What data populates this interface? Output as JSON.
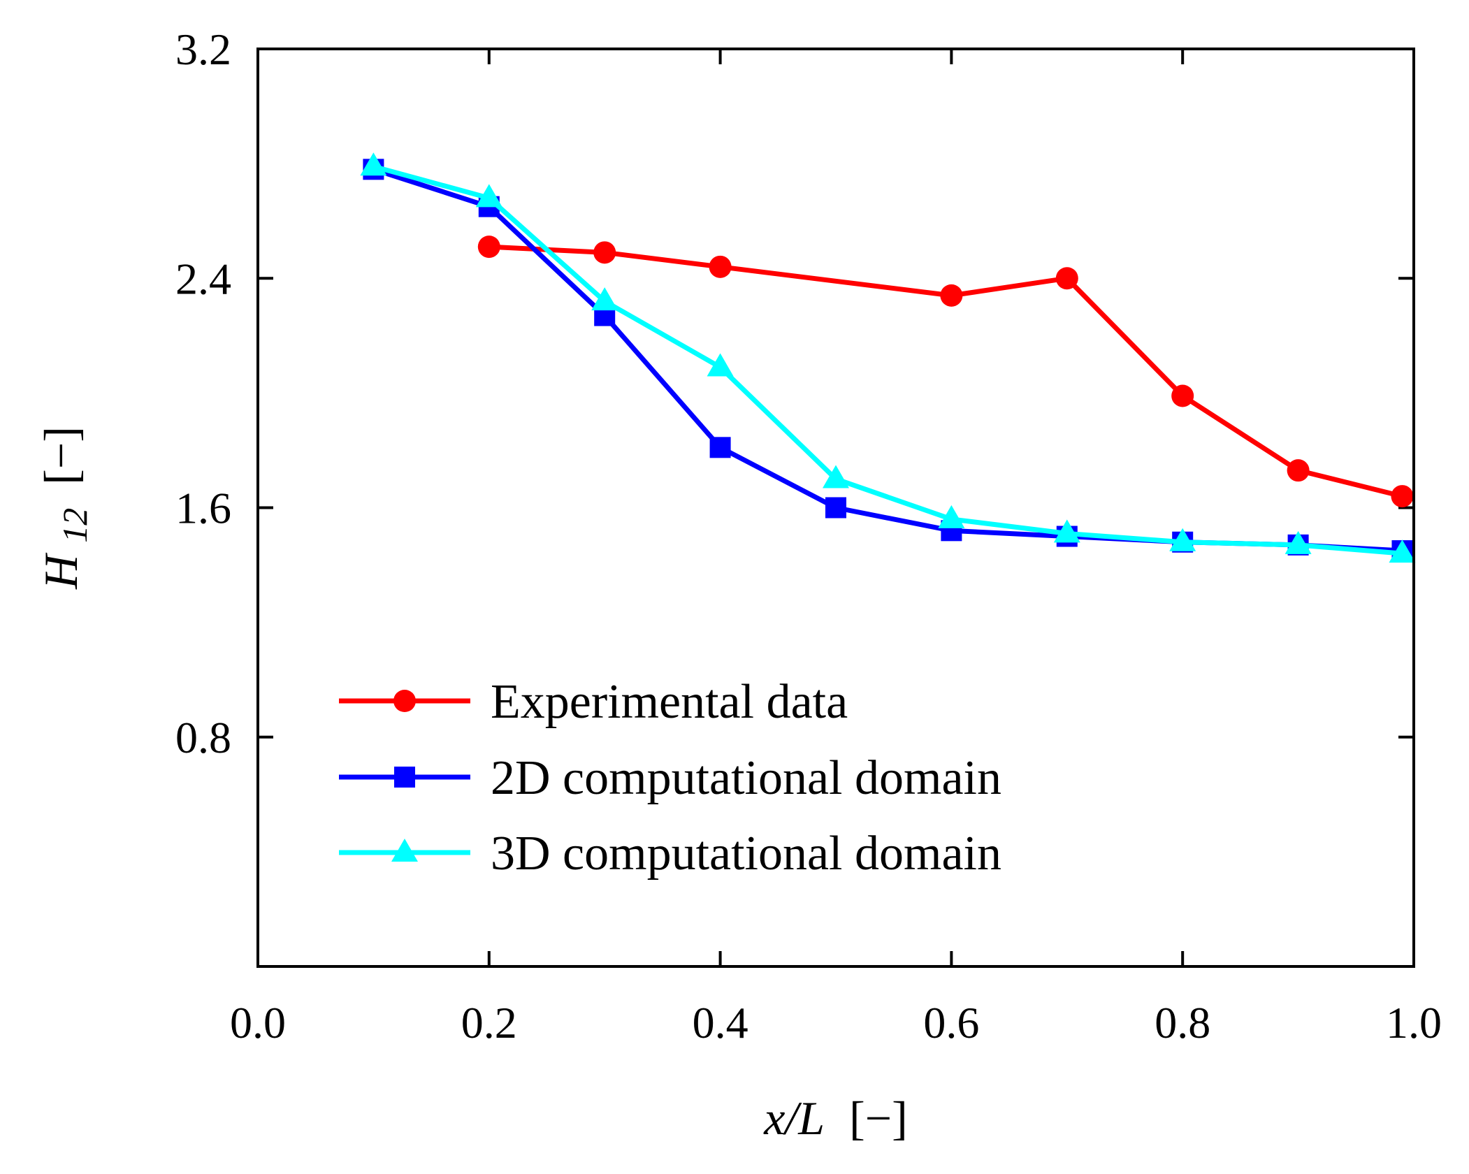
{
  "chart_data": {
    "type": "line",
    "title": "",
    "xlabel": {
      "var": "x/L",
      "unit": "[−]"
    },
    "ylabel": {
      "var": "H",
      "sub": "12",
      "unit": "[−]"
    },
    "xlim": [
      0.0,
      1.0
    ],
    "ylim": [
      0.0,
      3.2
    ],
    "xticks": [
      0.0,
      0.2,
      0.4,
      0.6,
      0.8,
      1.0
    ],
    "xtick_labels": [
      "0.0",
      "0.2",
      "0.4",
      "0.6",
      "0.8",
      "1.0"
    ],
    "yticks": [
      0.8,
      1.6,
      2.4,
      3.2
    ],
    "ytick_labels": [
      "0.8",
      "1.6",
      "2.4",
      "3.2"
    ],
    "grid": false,
    "legend_position": "lower-left",
    "series": [
      {
        "name": "Experimental data",
        "color": "#ff0000",
        "marker": "circle",
        "x": [
          0.2,
          0.3,
          0.4,
          0.6,
          0.7,
          0.8,
          0.9,
          0.99
        ],
        "y": [
          2.51,
          2.49,
          2.44,
          2.34,
          2.4,
          1.99,
          1.73,
          1.64
        ]
      },
      {
        "name": "2D computational domain",
        "color": "#0000ff",
        "marker": "square",
        "x": [
          0.1,
          0.2,
          0.3,
          0.4,
          0.5,
          0.6,
          0.7,
          0.8,
          0.9,
          0.99
        ],
        "y": [
          2.78,
          2.65,
          2.27,
          1.81,
          1.6,
          1.52,
          1.5,
          1.48,
          1.47,
          1.45
        ]
      },
      {
        "name": "3D computational domain",
        "color": "#00ffff",
        "marker": "triangle",
        "x": [
          0.1,
          0.2,
          0.3,
          0.4,
          0.5,
          0.6,
          0.7,
          0.8,
          0.9,
          0.99
        ],
        "y": [
          2.79,
          2.68,
          2.32,
          2.09,
          1.7,
          1.56,
          1.51,
          1.48,
          1.47,
          1.44
        ]
      }
    ]
  }
}
